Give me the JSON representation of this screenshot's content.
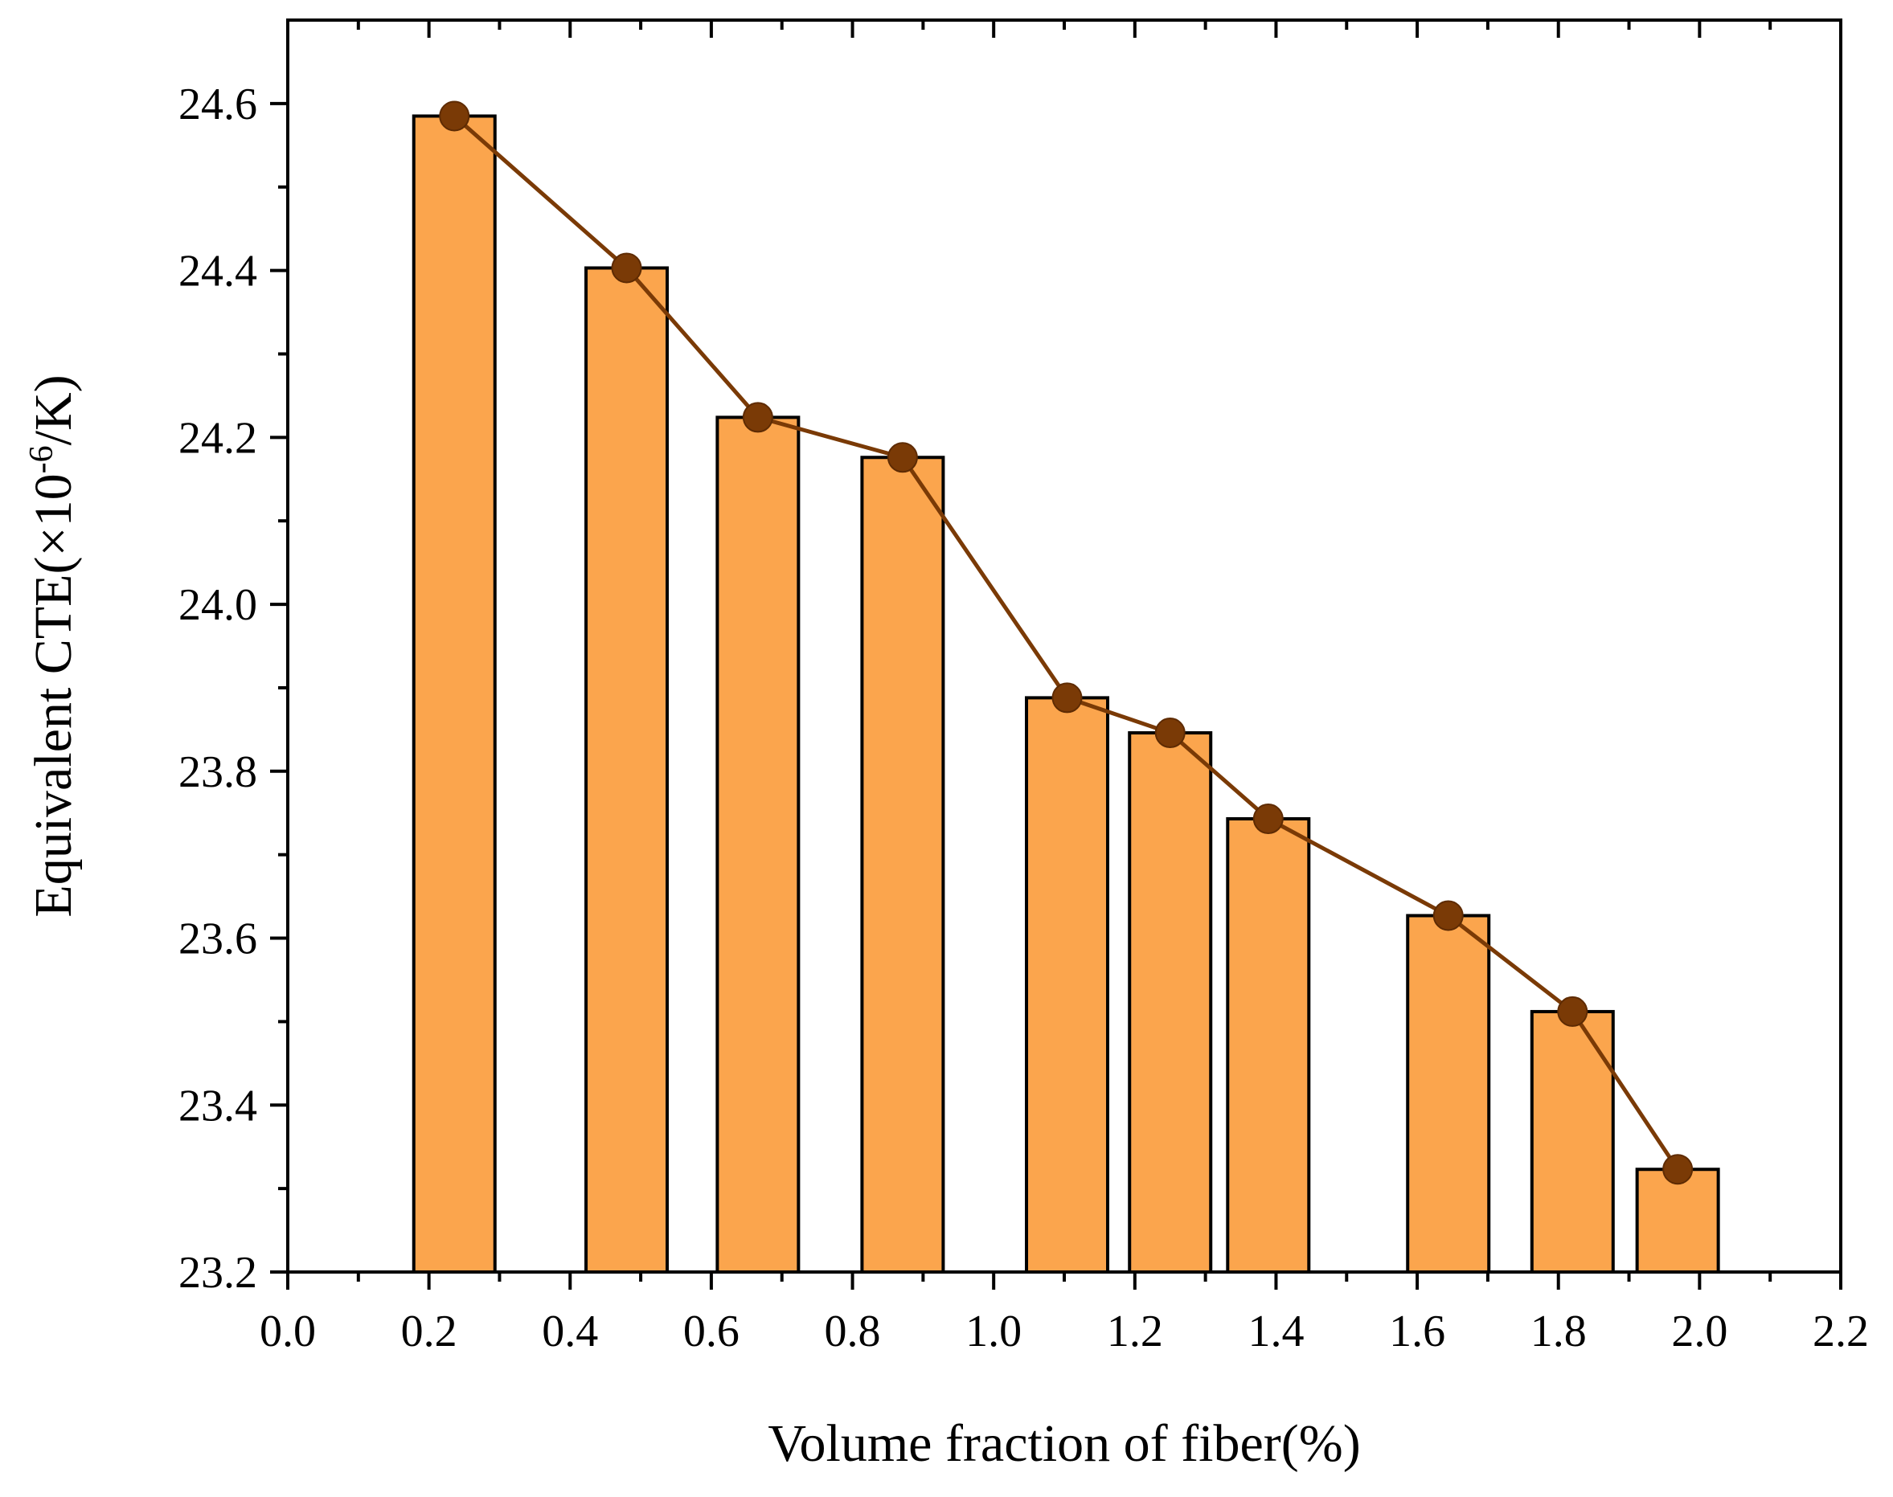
{
  "chart_data": {
    "type": "bar",
    "x": [
      0.236,
      0.48,
      0.666,
      0.871,
      1.104,
      1.25,
      1.389,
      1.644,
      1.82,
      1.969
    ],
    "values": [
      24.585,
      24.403,
      24.224,
      24.176,
      23.888,
      23.846,
      23.743,
      23.627,
      23.512,
      23.323
    ],
    "bar_width": 0.115,
    "series": [
      {
        "values": [
          24.585,
          24.403,
          24.224,
          24.176,
          23.888,
          23.846,
          23.743,
          23.627,
          23.512,
          23.323
        ],
        "color": "#FBA54D",
        "style": "bar"
      },
      {
        "values": [
          24.585,
          24.403,
          24.224,
          24.176,
          23.888,
          23.846,
          23.743,
          23.627,
          23.512,
          23.323
        ],
        "color": "#7A3A06",
        "style": "line-with-markers"
      }
    ],
    "xlabel": "Volume fraction of fiber(%)",
    "ylabel": {
      "prefix": "Equivalent CTE(×10",
      "superscript": "-6",
      "suffix": "/K)"
    },
    "xlim": [
      0.0,
      2.2
    ],
    "ylim": [
      23.2,
      24.7
    ],
    "xticks": [
      "0.0",
      "0.2",
      "0.4",
      "0.6",
      "0.8",
      "1.0",
      "1.2",
      "1.4",
      "1.6",
      "1.8",
      "2.0",
      "2.2"
    ],
    "yticks": [
      "23.2",
      "23.4",
      "23.6",
      "23.8",
      "24.0",
      "24.2",
      "24.4",
      "24.6"
    ],
    "grid": false,
    "legend": "none"
  }
}
